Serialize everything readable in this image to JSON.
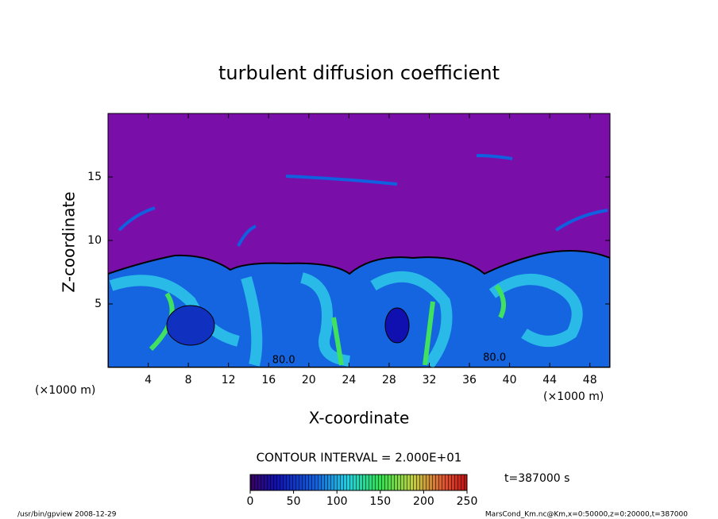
{
  "chart_data": {
    "type": "contour",
    "title": "turbulent diffusion coefficient",
    "xlabel": "X-coordinate",
    "ylabel": "Z-coordinate",
    "x_unit": "(×1000 m)",
    "y_unit": "(×1000 m)",
    "xlim": [
      0,
      50
    ],
    "xticks": [
      4,
      8,
      12,
      16,
      20,
      24,
      28,
      32,
      36,
      40,
      44,
      48
    ],
    "ylim": [
      0,
      20
    ],
    "yticks": [
      5,
      10,
      15
    ],
    "contour_labels": [
      {
        "x": 17.5,
        "y": 0.3,
        "label": "80.0"
      },
      {
        "x": 38.5,
        "y": 0.5,
        "label": "80.0"
      }
    ],
    "contour_interval": "CONTOUR INTERVAL = 2.000E+01",
    "time_label": "t=387000 s",
    "colorbar": {
      "lim": [
        0,
        250
      ],
      "ticks": [
        0,
        50,
        100,
        150,
        200,
        250
      ]
    },
    "footer_left": "/usr/bin/gpview   2008-12-29",
    "footer_right": "MarsCond_Km.nc@Km,x=0:50000,z=0:20000,t=387000"
  }
}
